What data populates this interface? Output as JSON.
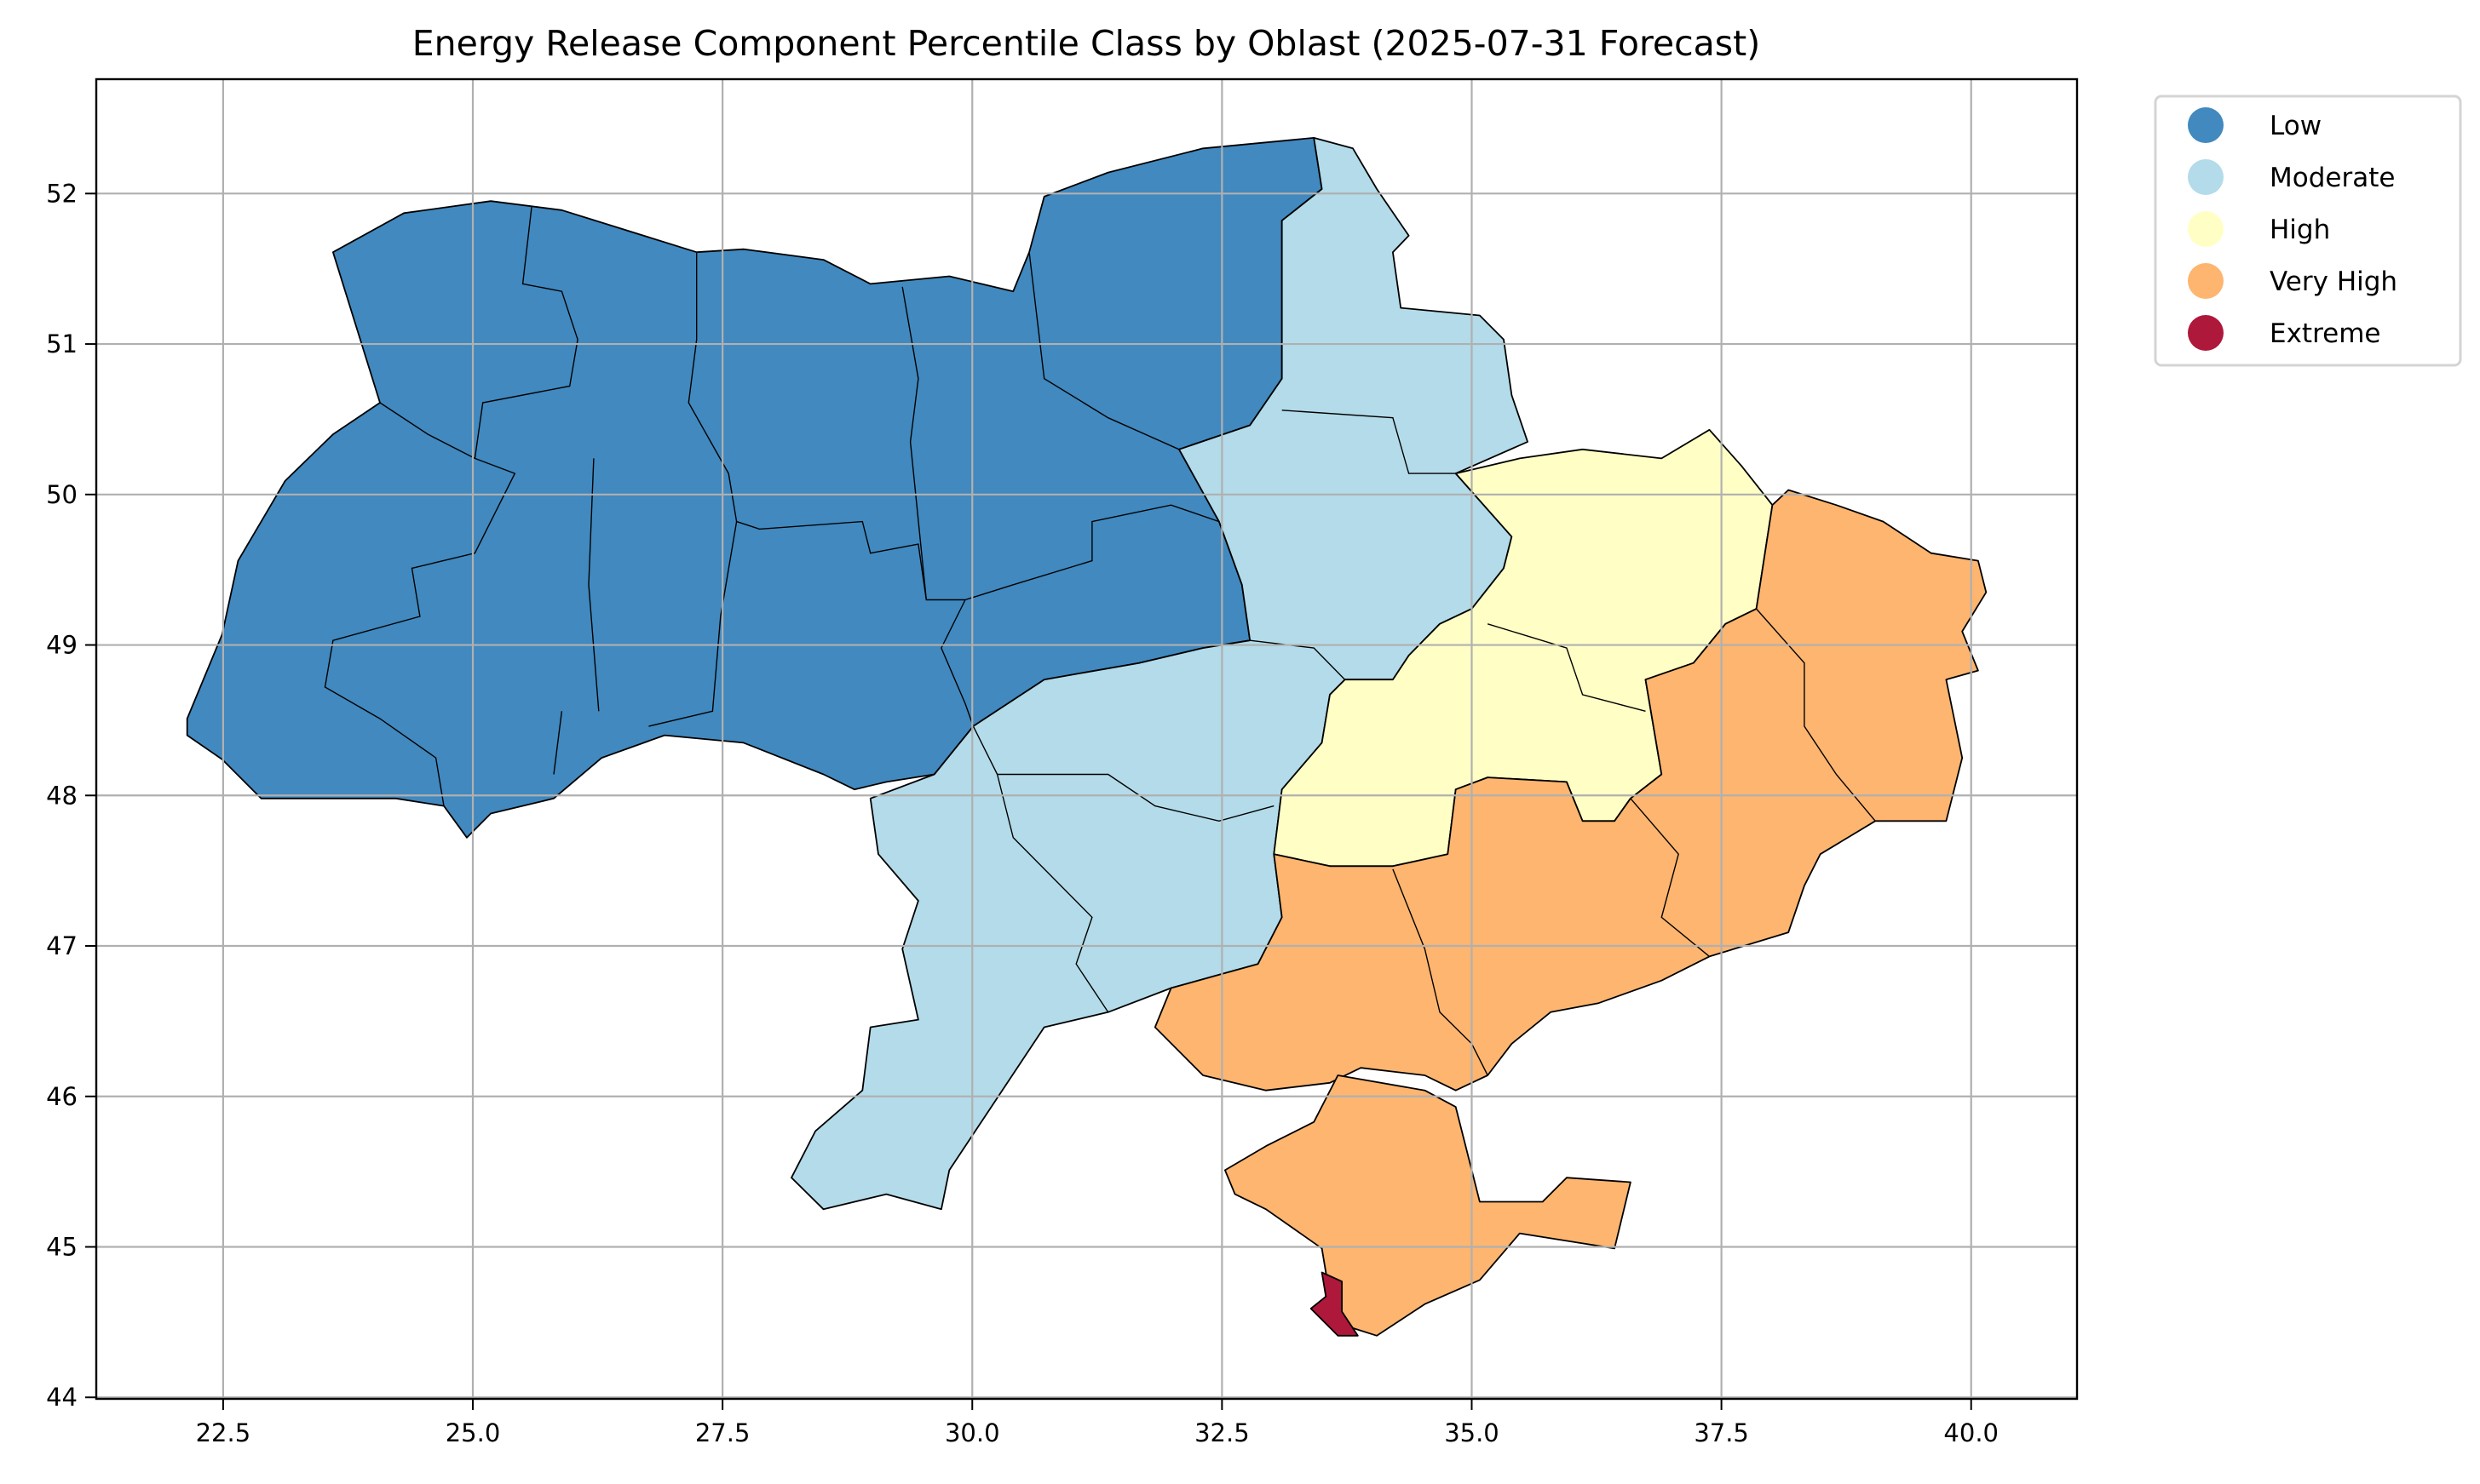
{
  "chart_data": {
    "type": "choropleth",
    "title": "Energy Release Component Percentile Class by Oblast (2025-07-31 Forecast)",
    "xlabel": "",
    "ylabel": "",
    "xlim": [
      21.23,
      41.06
    ],
    "ylim": [
      43.99,
      52.76
    ],
    "xticks": [
      22.5,
      25.0,
      27.5,
      30.0,
      32.5,
      35.0,
      37.5,
      40.0
    ],
    "xtick_labels": [
      "22.5",
      "25.0",
      "27.5",
      "30.0",
      "32.5",
      "35.0",
      "37.5",
      "40.0"
    ],
    "yticks": [
      44,
      45,
      46,
      47,
      48,
      49,
      50,
      51,
      52
    ],
    "ytick_labels": [
      "44",
      "45",
      "46",
      "47",
      "48",
      "49",
      "50",
      "51",
      "52"
    ],
    "grid": true,
    "legend_position": "outside-top-right",
    "classes": [
      {
        "name": "Low",
        "color": "#4189bf"
      },
      {
        "name": "Moderate",
        "color": "#b3dbe9"
      },
      {
        "name": "High",
        "color": "#ffffc5"
      },
      {
        "name": "Very High",
        "color": "#fdb56f"
      },
      {
        "name": "Extreme",
        "color": "#ae183b"
      }
    ],
    "regions": [
      {
        "class": "Low",
        "coords": [
          [
            22.14,
            48.51
          ],
          [
            22.49,
            49.07
          ],
          [
            22.65,
            49.56
          ],
          [
            23.12,
            50.09
          ],
          [
            23.6,
            50.4
          ],
          [
            24.07,
            50.61
          ],
          [
            23.6,
            51.61
          ],
          [
            24.31,
            51.87
          ],
          [
            25.18,
            51.95
          ],
          [
            25.89,
            51.89
          ],
          [
            27.24,
            51.61
          ],
          [
            27.71,
            51.63
          ],
          [
            28.51,
            51.56
          ],
          [
            28.98,
            51.4
          ],
          [
            29.77,
            51.45
          ],
          [
            30.41,
            51.35
          ],
          [
            30.57,
            51.61
          ],
          [
            30.72,
            51.98
          ],
          [
            31.36,
            52.14
          ],
          [
            32.31,
            52.3
          ],
          [
            33.42,
            52.37
          ],
          [
            33.5,
            52.03
          ],
          [
            33.1,
            51.82
          ],
          [
            33.1,
            50.77
          ],
          [
            32.78,
            50.46
          ],
          [
            32.07,
            50.3
          ],
          [
            32.47,
            49.82
          ],
          [
            32.7,
            49.4
          ],
          [
            32.78,
            49.03
          ],
          [
            32.31,
            48.98
          ],
          [
            31.67,
            48.88
          ],
          [
            30.72,
            48.77
          ],
          [
            30.01,
            48.46
          ],
          [
            29.62,
            48.14
          ],
          [
            29.14,
            48.09
          ],
          [
            28.82,
            48.04
          ],
          [
            28.51,
            48.14
          ],
          [
            27.71,
            48.35
          ],
          [
            26.92,
            48.4
          ],
          [
            26.29,
            48.25
          ],
          [
            25.81,
            47.98
          ],
          [
            25.18,
            47.88
          ],
          [
            24.94,
            47.72
          ],
          [
            24.71,
            47.93
          ],
          [
            24.23,
            47.98
          ],
          [
            23.44,
            47.98
          ],
          [
            22.88,
            47.98
          ],
          [
            22.49,
            48.24
          ],
          [
            22.14,
            48.4
          ]
        ]
      },
      {
        "class": "Moderate",
        "coords": [
          [
            33.42,
            52.37
          ],
          [
            33.81,
            52.3
          ],
          [
            34.05,
            52.03
          ],
          [
            34.37,
            51.72
          ],
          [
            34.21,
            51.61
          ],
          [
            34.29,
            51.24
          ],
          [
            35.08,
            51.19
          ],
          [
            35.32,
            51.03
          ],
          [
            35.4,
            50.66
          ],
          [
            35.56,
            50.35
          ],
          [
            34.84,
            50.14
          ],
          [
            35.4,
            49.72
          ],
          [
            35.32,
            49.51
          ],
          [
            35.0,
            49.24
          ],
          [
            34.68,
            49.14
          ],
          [
            34.37,
            48.93
          ],
          [
            34.21,
            48.77
          ],
          [
            33.73,
            48.77
          ],
          [
            33.58,
            48.67
          ],
          [
            33.5,
            48.35
          ],
          [
            33.1,
            48.04
          ],
          [
            33.02,
            47.61
          ],
          [
            33.1,
            47.19
          ],
          [
            32.86,
            46.88
          ],
          [
            31.99,
            46.72
          ],
          [
            31.36,
            46.56
          ],
          [
            30.72,
            46.46
          ],
          [
            29.77,
            45.51
          ],
          [
            29.69,
            45.25
          ],
          [
            29.14,
            45.35
          ],
          [
            28.51,
            45.25
          ],
          [
            28.19,
            45.46
          ],
          [
            28.43,
            45.77
          ],
          [
            28.9,
            46.04
          ],
          [
            28.98,
            46.46
          ],
          [
            29.46,
            46.51
          ],
          [
            29.3,
            46.98
          ],
          [
            29.46,
            47.3
          ],
          [
            29.06,
            47.61
          ],
          [
            28.98,
            47.98
          ],
          [
            29.62,
            48.14
          ],
          [
            30.01,
            48.46
          ],
          [
            30.72,
            48.77
          ],
          [
            31.67,
            48.88
          ],
          [
            32.31,
            48.98
          ],
          [
            32.78,
            49.03
          ],
          [
            32.7,
            49.4
          ],
          [
            32.47,
            49.82
          ],
          [
            32.07,
            50.3
          ],
          [
            32.78,
            50.46
          ],
          [
            33.1,
            50.77
          ],
          [
            33.1,
            51.82
          ],
          [
            33.5,
            52.03
          ]
        ]
      },
      {
        "class": "High",
        "coords": [
          [
            34.84,
            50.14
          ],
          [
            35.48,
            50.24
          ],
          [
            36.11,
            50.3
          ],
          [
            36.9,
            50.24
          ],
          [
            37.38,
            50.43
          ],
          [
            37.7,
            50.19
          ],
          [
            38.01,
            49.93
          ],
          [
            37.85,
            49.24
          ],
          [
            37.54,
            49.14
          ],
          [
            37.22,
            48.88
          ],
          [
            36.74,
            48.77
          ],
          [
            36.9,
            48.14
          ],
          [
            36.59,
            47.98
          ],
          [
            36.43,
            47.83
          ],
          [
            36.11,
            47.83
          ],
          [
            35.95,
            48.09
          ],
          [
            35.16,
            48.12
          ],
          [
            34.84,
            48.04
          ],
          [
            34.76,
            47.61
          ],
          [
            34.21,
            47.53
          ],
          [
            33.58,
            47.53
          ],
          [
            33.02,
            47.61
          ],
          [
            33.1,
            48.04
          ],
          [
            33.5,
            48.35
          ],
          [
            33.58,
            48.67
          ],
          [
            33.73,
            48.77
          ],
          [
            34.21,
            48.77
          ],
          [
            34.37,
            48.93
          ],
          [
            34.68,
            49.14
          ],
          [
            35.0,
            49.24
          ],
          [
            35.32,
            49.51
          ],
          [
            35.4,
            49.72
          ]
        ]
      },
      {
        "class": "Very High",
        "coords": [
          [
            38.01,
            49.93
          ],
          [
            38.17,
            50.03
          ],
          [
            38.65,
            49.93
          ],
          [
            39.12,
            49.82
          ],
          [
            39.6,
            49.61
          ],
          [
            40.07,
            49.56
          ],
          [
            40.15,
            49.35
          ],
          [
            39.91,
            49.09
          ],
          [
            40.07,
            48.83
          ],
          [
            39.75,
            48.77
          ],
          [
            39.91,
            48.25
          ],
          [
            39.75,
            47.83
          ],
          [
            39.04,
            47.83
          ],
          [
            38.49,
            47.61
          ],
          [
            38.33,
            47.4
          ],
          [
            38.17,
            47.09
          ],
          [
            37.38,
            46.93
          ],
          [
            36.9,
            46.77
          ],
          [
            36.27,
            46.62
          ],
          [
            35.79,
            46.56
          ],
          [
            35.4,
            46.35
          ],
          [
            35.16,
            46.14
          ],
          [
            34.84,
            46.04
          ],
          [
            34.53,
            46.14
          ],
          [
            33.89,
            46.19
          ],
          [
            33.58,
            46.09
          ],
          [
            32.94,
            46.04
          ],
          [
            32.31,
            46.14
          ],
          [
            31.83,
            46.46
          ],
          [
            31.99,
            46.72
          ],
          [
            32.86,
            46.88
          ],
          [
            33.1,
            47.19
          ],
          [
            33.02,
            47.61
          ],
          [
            33.58,
            47.53
          ],
          [
            34.21,
            47.53
          ],
          [
            34.76,
            47.61
          ],
          [
            34.84,
            48.04
          ],
          [
            35.16,
            48.12
          ],
          [
            35.95,
            48.09
          ],
          [
            36.11,
            47.83
          ],
          [
            36.43,
            47.83
          ],
          [
            36.59,
            47.98
          ],
          [
            36.9,
            48.14
          ],
          [
            36.74,
            48.77
          ],
          [
            37.22,
            48.88
          ],
          [
            37.54,
            49.14
          ],
          [
            37.85,
            49.24
          ]
        ]
      },
      {
        "class": "Very High",
        "coords": [
          [
            33.66,
            46.14
          ],
          [
            34.53,
            46.04
          ],
          [
            34.84,
            45.93
          ],
          [
            35.08,
            45.3
          ],
          [
            35.71,
            45.3
          ],
          [
            35.95,
            45.46
          ],
          [
            36.59,
            45.43
          ],
          [
            36.43,
            44.99
          ],
          [
            35.95,
            45.04
          ],
          [
            35.48,
            45.09
          ],
          [
            35.08,
            44.78
          ],
          [
            34.53,
            44.62
          ],
          [
            34.05,
            44.41
          ],
          [
            33.81,
            44.46
          ],
          [
            33.58,
            44.67
          ],
          [
            33.5,
            44.99
          ],
          [
            32.94,
            45.25
          ],
          [
            32.63,
            45.35
          ],
          [
            32.53,
            45.51
          ],
          [
            32.94,
            45.67
          ],
          [
            33.42,
            45.83
          ]
        ]
      },
      {
        "class": "Extreme",
        "coords": [
          [
            33.5,
            44.83
          ],
          [
            33.7,
            44.77
          ],
          [
            33.7,
            44.57
          ],
          [
            33.86,
            44.41
          ],
          [
            33.66,
            44.41
          ],
          [
            33.39,
            44.59
          ],
          [
            33.54,
            44.67
          ]
        ]
      }
    ],
    "internal_borders": [
      [
        [
          25.59,
          51.92
        ],
        [
          25.5,
          51.4
        ],
        [
          25.89,
          51.35
        ],
        [
          26.05,
          51.03
        ],
        [
          25.97,
          50.72
        ],
        [
          25.1,
          50.61
        ],
        [
          25.02,
          50.24
        ]
      ],
      [
        [
          24.07,
          50.61
        ],
        [
          24.55,
          50.4
        ],
        [
          25.02,
          50.24
        ],
        [
          25.42,
          50.14
        ],
        [
          25.02,
          49.61
        ],
        [
          24.39,
          49.51
        ],
        [
          24.47,
          49.19
        ],
        [
          23.6,
          49.03
        ],
        [
          23.52,
          48.72
        ],
        [
          24.07,
          48.51
        ],
        [
          24.63,
          48.25
        ],
        [
          24.71,
          47.93
        ]
      ],
      [
        [
          27.24,
          51.61
        ],
        [
          27.24,
          51.03
        ],
        [
          27.16,
          50.61
        ],
        [
          27.56,
          50.14
        ],
        [
          27.64,
          49.82
        ]
      ],
      [
        [
          26.21,
          50.24
        ],
        [
          26.16,
          49.4
        ],
        [
          26.26,
          48.56
        ]
      ],
      [
        [
          27.64,
          49.82
        ],
        [
          27.87,
          49.77
        ],
        [
          28.9,
          49.82
        ],
        [
          28.98,
          49.61
        ],
        [
          29.46,
          49.67
        ],
        [
          29.54,
          49.3
        ],
        [
          29.93,
          49.3
        ]
      ],
      [
        [
          27.64,
          49.82
        ],
        [
          27.48,
          49.19
        ],
        [
          27.4,
          48.56
        ],
        [
          26.76,
          48.46
        ]
      ],
      [
        [
          29.3,
          51.38
        ],
        [
          29.46,
          50.77
        ],
        [
          29.38,
          50.35
        ],
        [
          29.54,
          49.3
        ]
      ],
      [
        [
          30.57,
          51.61
        ],
        [
          30.72,
          50.77
        ],
        [
          31.36,
          50.51
        ],
        [
          32.07,
          50.3
        ]
      ],
      [
        [
          29.93,
          49.3
        ],
        [
          29.69,
          48.98
        ],
        [
          29.93,
          48.61
        ],
        [
          30.01,
          48.46
        ]
      ],
      [
        [
          29.93,
          49.3
        ],
        [
          30.41,
          49.4
        ],
        [
          31.2,
          49.56
        ],
        [
          31.2,
          49.82
        ],
        [
          31.99,
          49.93
        ],
        [
          32.47,
          49.82
        ]
      ],
      [
        [
          25.89,
          48.56
        ],
        [
          25.81,
          48.14
        ]
      ],
      [
        [
          33.1,
          50.56
        ],
        [
          34.21,
          50.51
        ],
        [
          34.37,
          50.14
        ],
        [
          34.84,
          50.14
        ]
      ],
      [
        [
          32.78,
          49.03
        ],
        [
          33.42,
          48.98
        ],
        [
          33.73,
          48.77
        ]
      ],
      [
        [
          30.01,
          48.46
        ],
        [
          30.25,
          48.14
        ],
        [
          31.36,
          48.14
        ],
        [
          31.83,
          47.93
        ],
        [
          32.47,
          47.83
        ],
        [
          33.02,
          47.93
        ]
      ],
      [
        [
          30.25,
          48.14
        ],
        [
          30.41,
          47.72
        ],
        [
          31.2,
          47.19
        ],
        [
          31.04,
          46.88
        ],
        [
          31.36,
          46.56
        ]
      ],
      [
        [
          35.16,
          49.14
        ],
        [
          35.95,
          48.98
        ],
        [
          36.11,
          48.67
        ],
        [
          36.74,
          48.56
        ]
      ],
      [
        [
          34.21,
          47.51
        ],
        [
          34.53,
          46.98
        ],
        [
          34.68,
          46.56
        ],
        [
          35.0,
          46.35
        ],
        [
          35.16,
          46.14
        ]
      ],
      [
        [
          37.85,
          49.24
        ],
        [
          38.33,
          48.88
        ],
        [
          38.33,
          48.46
        ],
        [
          38.65,
          48.14
        ],
        [
          39.04,
          47.83
        ]
      ],
      [
        [
          36.59,
          47.98
        ],
        [
          37.07,
          47.61
        ],
        [
          36.9,
          47.19
        ],
        [
          37.38,
          46.93
        ]
      ]
    ]
  }
}
